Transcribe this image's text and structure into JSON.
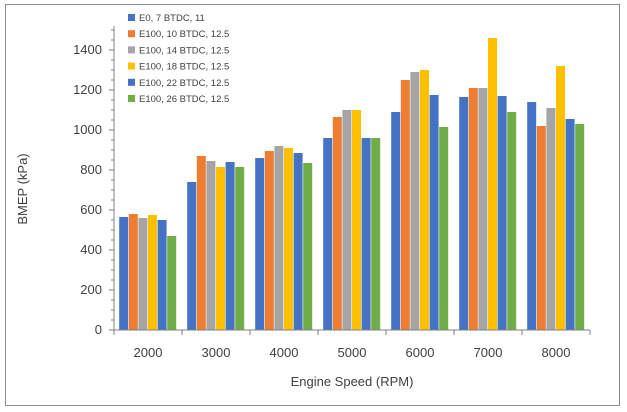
{
  "chart_data": {
    "type": "bar",
    "xlabel": "Engine Speed (RPM)",
    "ylabel": "BMEP (kPa)",
    "ylim": [
      0,
      1500
    ],
    "yticks": [
      0,
      200,
      400,
      600,
      800,
      1000,
      1200,
      1400
    ],
    "grid": false,
    "legend_position": "top-left",
    "categories": [
      "2000",
      "3000",
      "4000",
      "5000",
      "6000",
      "7000",
      "8000"
    ],
    "series": [
      {
        "name": "E0, 7 BTDC, 11",
        "color": "#4472C4",
        "values": [
          565,
          740,
          860,
          960,
          1090,
          1165,
          1140
        ]
      },
      {
        "name": "E100, 10 BTDC, 12.5",
        "color": "#ED7D31",
        "values": [
          580,
          870,
          895,
          1065,
          1250,
          1210,
          1020
        ]
      },
      {
        "name": "E100, 14 BTDC, 12.5",
        "color": "#A5A5A5",
        "values": [
          560,
          845,
          920,
          1100,
          1290,
          1210,
          1110
        ]
      },
      {
        "name": "E100, 18 BTDC, 12.5",
        "color": "#FFC000",
        "values": [
          575,
          815,
          910,
          1100,
          1300,
          1460,
          1320
        ]
      },
      {
        "name": "E100, 22 BTDC, 12.5",
        "color": "#4472C4",
        "values": [
          550,
          840,
          885,
          960,
          1175,
          1170,
          1055
        ]
      },
      {
        "name": "E100, 26 BTDC, 12.5",
        "color": "#70AD47",
        "values": [
          470,
          815,
          835,
          960,
          1015,
          1090,
          1030
        ]
      }
    ]
  }
}
